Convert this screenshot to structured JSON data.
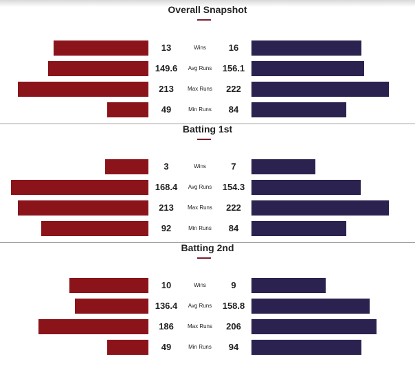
{
  "chart_data": {
    "type": "bar",
    "orientation": "horizontal-diverging",
    "colors": {
      "left_team": "#8b141b",
      "right_team": "#2b2250",
      "accent": "#7a1c2c"
    },
    "panels": [
      {
        "title": "Overall Snapshot",
        "rows": [
          {
            "metric": "Wins",
            "left": 13,
            "right": 16,
            "left_label": "13",
            "right_label": "16"
          },
          {
            "metric": "Avg Runs",
            "left": 149.6,
            "right": 156.1,
            "left_label": "149.6",
            "right_label": "156.1"
          },
          {
            "metric": "Max Runs",
            "left": 213,
            "right": 222,
            "left_label": "213",
            "right_label": "222"
          },
          {
            "metric": "Min Runs",
            "left": 49,
            "right": 84,
            "left_label": "49",
            "right_label": "84"
          }
        ]
      },
      {
        "title": "Batting 1st",
        "rows": [
          {
            "metric": "Wins",
            "left": 3,
            "right": 7,
            "left_label": "3",
            "right_label": "7"
          },
          {
            "metric": "Avg Runs",
            "left": 168.4,
            "right": 154.3,
            "left_label": "168.4",
            "right_label": "154.3"
          },
          {
            "metric": "Max Runs",
            "left": 213,
            "right": 222,
            "left_label": "213",
            "right_label": "222"
          },
          {
            "metric": "Min Runs",
            "left": 92,
            "right": 84,
            "left_label": "92",
            "right_label": "84"
          }
        ]
      },
      {
        "title": "Batting 2nd",
        "rows": [
          {
            "metric": "Wins",
            "left": 10,
            "right": 9,
            "left_label": "10",
            "right_label": "9"
          },
          {
            "metric": "Avg Runs",
            "left": 136.4,
            "right": 158.8,
            "left_label": "136.4",
            "right_label": "158.8"
          },
          {
            "metric": "Max Runs",
            "left": 186,
            "right": 206,
            "left_label": "186",
            "right_label": "206"
          },
          {
            "metric": "Min Runs",
            "left": 49,
            "right": 94,
            "left_label": "49",
            "right_label": "94"
          }
        ]
      }
    ]
  }
}
